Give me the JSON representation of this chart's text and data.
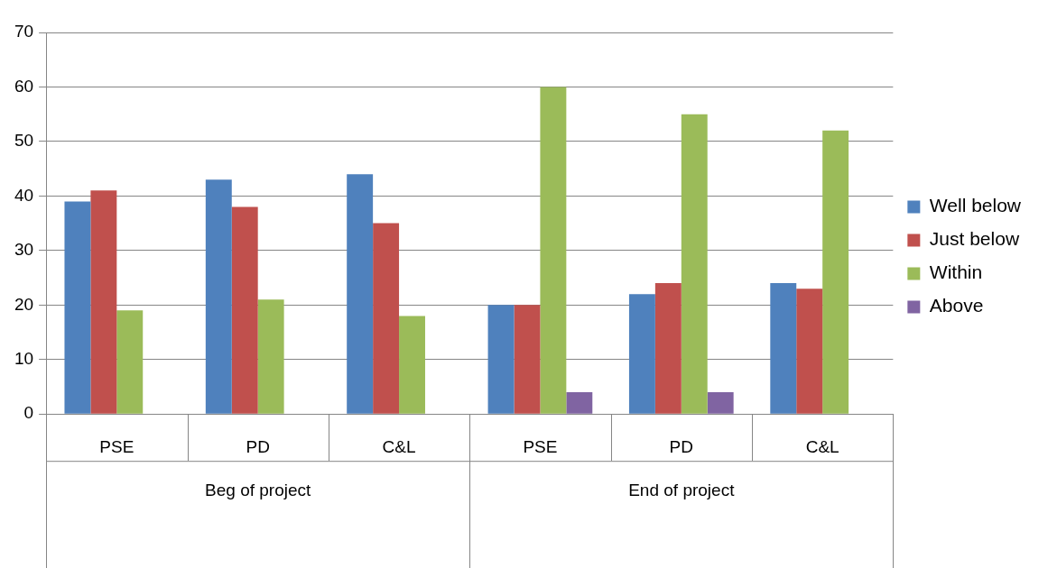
{
  "chart_data": {
    "type": "bar",
    "categories": [
      "PSE",
      "PD",
      "C&L",
      "PSE",
      "PD",
      "C&L"
    ],
    "series": [
      {
        "name": "Well below",
        "color": "#4f81bd",
        "values": [
          39,
          43,
          44,
          20,
          22,
          24
        ]
      },
      {
        "name": "Just below",
        "color": "#c0504d",
        "values": [
          41,
          38,
          35,
          20,
          24,
          23
        ]
      },
      {
        "name": "Within",
        "color": "#9bbb59",
        "values": [
          19,
          21,
          18,
          60,
          55,
          52
        ]
      },
      {
        "name": "Above",
        "color": "#8064a2",
        "values": [
          null,
          null,
          null,
          4,
          4,
          null
        ]
      }
    ],
    "annotations": [
      "Beg of project",
      "End of project"
    ],
    "ylim": [
      0,
      70
    ],
    "yticks": [
      0,
      10,
      20,
      30,
      40,
      50,
      60,
      70
    ],
    "grid": "y",
    "legend": "right"
  }
}
